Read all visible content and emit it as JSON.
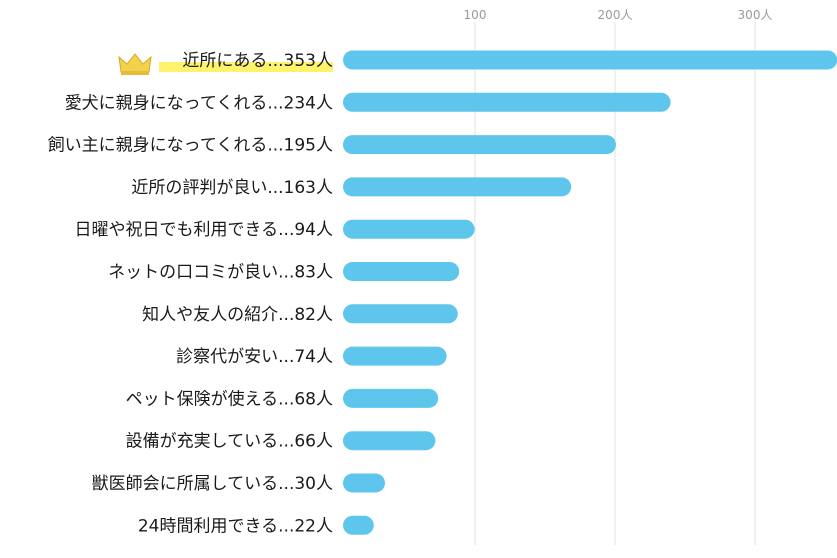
{
  "chart_data": {
    "type": "bar",
    "orientation": "horizontal",
    "xlim": [
      0,
      355
    ],
    "ticks": [
      {
        "value": 100,
        "label": "100"
      },
      {
        "value": 200,
        "label": "200人"
      },
      {
        "value": 300,
        "label": "300人"
      }
    ],
    "grid": true,
    "bar_color": "#5ec6ec",
    "highlight_color": "#fff36b",
    "crown_color": "#f2d24a",
    "categories": [
      "近所にある...353人",
      "愛犬に親身になってくれる...234人",
      "飼い主に親身になってくれる...195人",
      "近所の評判が良い...163人",
      "日曜や祝日でも利用できる...94人",
      "ネットの口コミが良い...83人",
      "知人や友人の紹介...82人",
      "診察代が安い...74人",
      "ペット保険が使える...68人",
      "設備が充実している...66人",
      "獣医師会に所属している...30人",
      "24時間利用できる...22人"
    ],
    "values": [
      353,
      234,
      195,
      163,
      94,
      83,
      82,
      74,
      68,
      66,
      30,
      22
    ],
    "highlight_index": 0,
    "crown_icon": "crown-icon"
  }
}
